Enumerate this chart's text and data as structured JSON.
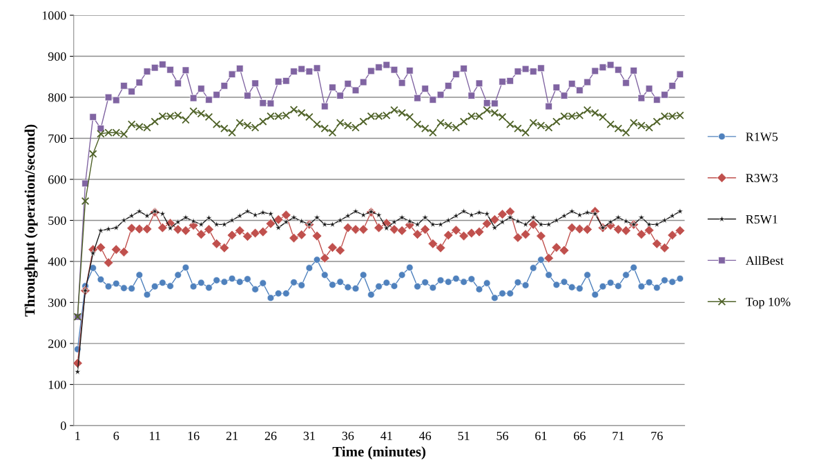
{
  "chart_data": {
    "type": "line",
    "xlabel": "Time (minutes)",
    "ylabel": "Throughput (operation/second)",
    "categories": [
      "1",
      null,
      null,
      null,
      null,
      "6",
      null,
      null,
      null,
      null,
      "11",
      null,
      null,
      null,
      null,
      "16",
      null,
      null,
      null,
      null,
      "21",
      null,
      null,
      null,
      null,
      "26",
      null,
      null,
      null,
      null,
      "31",
      null,
      null,
      null,
      null,
      "36",
      null,
      null,
      null,
      null,
      "41",
      null,
      null,
      null,
      null,
      "46",
      null,
      null,
      null,
      null,
      "51",
      null,
      null,
      null,
      null,
      "56",
      null,
      null,
      null,
      null,
      "61",
      null,
      null,
      null,
      null,
      "66",
      null,
      null,
      null,
      null,
      "71",
      null,
      null,
      null,
      null,
      "76",
      null,
      null,
      null
    ],
    "ylim": [
      0,
      1000
    ],
    "yticks": [
      0,
      100,
      200,
      300,
      400,
      500,
      600,
      700,
      800,
      900,
      1000
    ],
    "grid": "y",
    "legend": "right",
    "series": [
      {
        "name": "R1W5",
        "color": "#4f81bd",
        "marker": "circle",
        "values": [
          186,
          340,
          384,
          356,
          339,
          346,
          335,
          334,
          367,
          319,
          339,
          348,
          340,
          367,
          385,
          339,
          348,
          336,
          354,
          350,
          358,
          350,
          357,
          332,
          347,
          311,
          322,
          322,
          349,
          342,
          384,
          404,
          367,
          343,
          350,
          337,
          334,
          367,
          319,
          339,
          348,
          340,
          367,
          385,
          339,
          349,
          336,
          354,
          350,
          358,
          350,
          357,
          332,
          347,
          311,
          322,
          322,
          349,
          342,
          384,
          404,
          367,
          343,
          350,
          337,
          334,
          367,
          319,
          339,
          348,
          340,
          367,
          385,
          339,
          349,
          336,
          354,
          350,
          358
        ]
      },
      {
        "name": "R3W3",
        "color": "#c0504d",
        "marker": "diamond",
        "values": [
          152,
          329,
          429,
          434,
          397,
          429,
          423,
          481,
          479,
          479,
          520,
          482,
          493,
          478,
          475,
          488,
          466,
          478,
          443,
          433,
          464,
          475,
          461,
          469,
          472,
          492,
          502,
          513,
          457,
          465,
          490,
          462,
          408,
          434,
          427,
          482,
          478,
          478,
          520,
          482,
          493,
          478,
          475,
          489,
          466,
          478,
          443,
          433,
          464,
          476,
          462,
          469,
          472,
          492,
          502,
          515,
          521,
          458,
          466,
          490,
          462,
          408,
          434,
          427,
          482,
          479,
          478,
          522,
          482,
          488,
          478,
          475,
          490,
          466,
          476,
          443,
          433,
          464,
          475
        ]
      },
      {
        "name": "R5W1",
        "color": "#1a1a1a",
        "marker": "star",
        "values": [
          131,
          329,
          420,
          475,
          479,
          482,
          500,
          511,
          522,
          511,
          522,
          516,
          481,
          496,
          507,
          498,
          490,
          506,
          490,
          490,
          500,
          511,
          522,
          513,
          519,
          516,
          482,
          496,
          507,
          498,
          490,
          507,
          490,
          490,
          500,
          511,
          522,
          513,
          521,
          513,
          481,
          496,
          507,
          498,
          490,
          507,
          490,
          490,
          500,
          511,
          522,
          513,
          519,
          516,
          482,
          496,
          507,
          498,
          490,
          507,
          490,
          490,
          500,
          511,
          522,
          513,
          519,
          516,
          482,
          496,
          507,
          498,
          490,
          507,
          490,
          490,
          500,
          511,
          522
        ]
      },
      {
        "name": "AllBest",
        "color": "#8064a2",
        "marker": "square",
        "values": [
          265,
          590,
          752,
          724,
          800,
          793,
          828,
          814,
          836,
          863,
          872,
          880,
          867,
          834,
          866,
          798,
          821,
          794,
          806,
          828,
          856,
          870,
          804,
          834,
          786,
          785,
          838,
          840,
          863,
          869,
          863,
          871,
          778,
          824,
          804,
          833,
          817,
          837,
          864,
          873,
          879,
          867,
          835,
          865,
          798,
          821,
          794,
          806,
          828,
          856,
          870,
          804,
          834,
          786,
          785,
          838,
          840,
          863,
          869,
          863,
          871,
          778,
          824,
          804,
          833,
          817,
          837,
          864,
          873,
          879,
          867,
          835,
          865,
          798,
          821,
          794,
          806,
          828,
          856
        ]
      },
      {
        "name": "Top 10%",
        "color": "#4f6228",
        "marker": "cross",
        "values": [
          265,
          547,
          662,
          711,
          714,
          714,
          710,
          734,
          728,
          726,
          741,
          754,
          754,
          756,
          745,
          766,
          760,
          752,
          734,
          724,
          714,
          738,
          731,
          726,
          741,
          754,
          754,
          756,
          770,
          762,
          752,
          734,
          724,
          714,
          738,
          731,
          726,
          741,
          754,
          754,
          756,
          769,
          762,
          752,
          734,
          724,
          714,
          738,
          731,
          726,
          741,
          754,
          754,
          769,
          762,
          752,
          734,
          724,
          714,
          738,
          731,
          726,
          741,
          754,
          754,
          756,
          769,
          762,
          752,
          734,
          724,
          714,
          738,
          731,
          726,
          741,
          754,
          754,
          756
        ]
      }
    ]
  }
}
